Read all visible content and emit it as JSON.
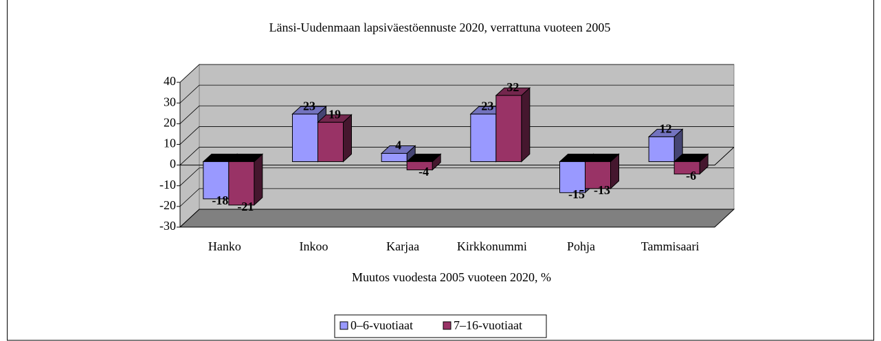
{
  "chart_data": {
    "type": "bar3d",
    "title": "Länsi-Uudenmaan lapsiväestöennuste 2020, verrattuna vuoteen 2005",
    "x_label": "Muutos vuodesta 2005 vuoteen 2020, %",
    "categories": [
      "Hanko",
      "Inkoo",
      "Karjaa",
      "Kirkkonummi",
      "Pohja",
      "Tammisaari"
    ],
    "series": [
      {
        "name": "0–6-vuotiaat",
        "color": "#9999ff",
        "values": [
          -18,
          23,
          4,
          23,
          -15,
          12
        ]
      },
      {
        "name": "7–16-vuotiaat",
        "color": "#993366",
        "values": [
          -21,
          19,
          -4,
          32,
          -13,
          -6
        ]
      }
    ],
    "ylim": [
      -30,
      40
    ],
    "yticks": [
      -30,
      -20,
      -10,
      0,
      10,
      20,
      30,
      40
    ],
    "grid": true,
    "legend": "bottom"
  }
}
